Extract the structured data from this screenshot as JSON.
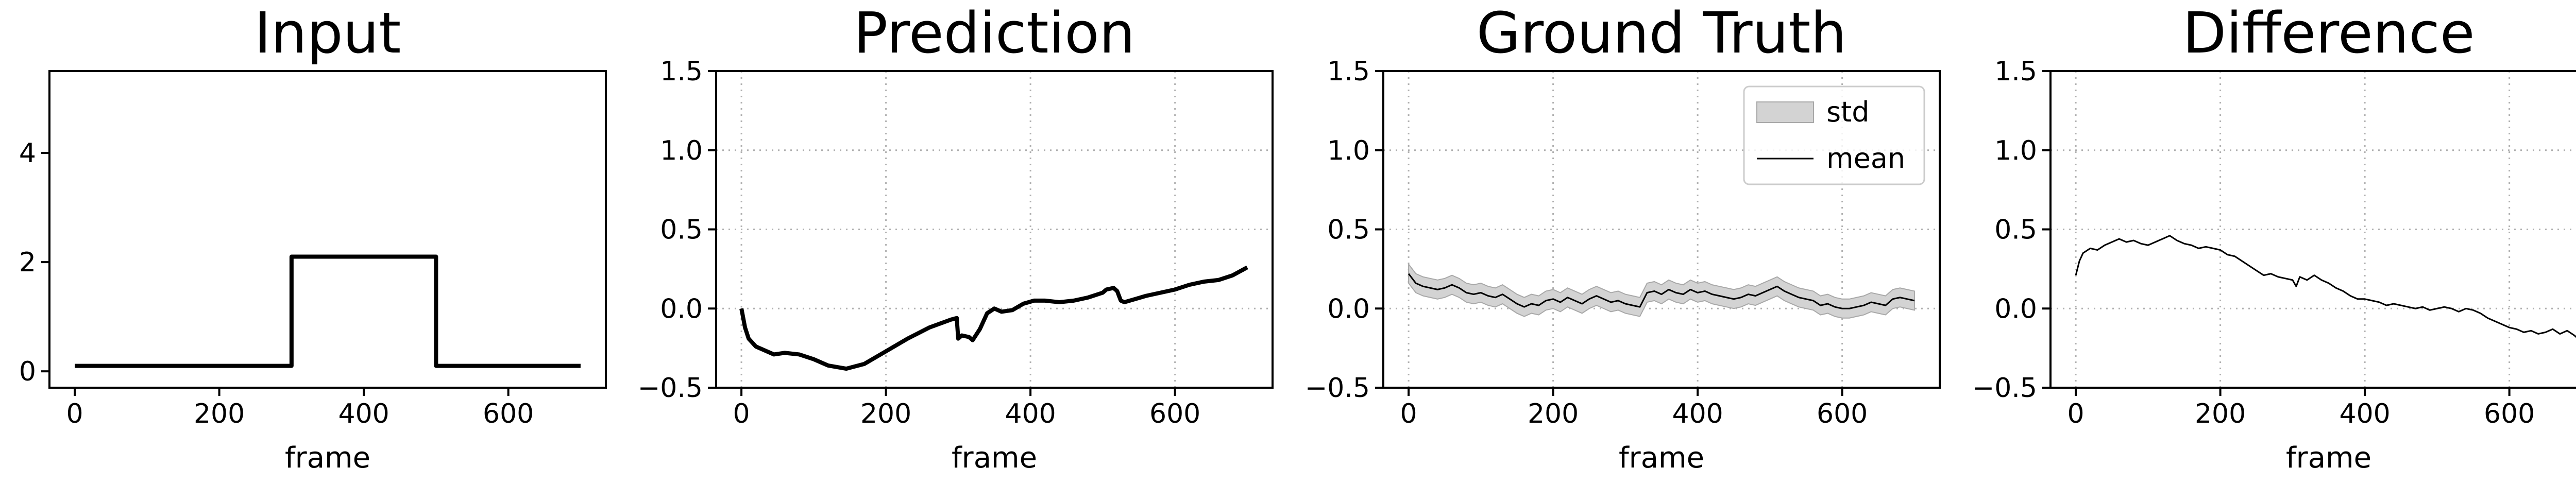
{
  "chart_data": [
    {
      "type": "line",
      "title": "Input",
      "xlabel": "frame",
      "ylabel": "",
      "xlim": [
        -35,
        735
      ],
      "ylim": [
        -0.3,
        5.5
      ],
      "xticks": [
        0,
        200,
        400,
        600
      ],
      "yticks": [
        0,
        2,
        4
      ],
      "xtick_labels": [
        "0",
        "200",
        "400",
        "600"
      ],
      "ytick_labels": [
        "0",
        "2",
        "4"
      ],
      "grid": false,
      "series": [
        {
          "color": "#000000",
          "x": [
            0,
            300,
            300,
            500,
            500,
            700
          ],
          "y": [
            0.1,
            0.1,
            2.1,
            2.1,
            0.1,
            0.1
          ]
        }
      ]
    },
    {
      "type": "line",
      "title": "Prediction",
      "xlabel": "frame",
      "ylabel": "",
      "xlim": [
        -35,
        735
      ],
      "ylim": [
        -0.5,
        1.5
      ],
      "xticks": [
        0,
        200,
        400,
        600
      ],
      "yticks": [
        -0.5,
        0.0,
        0.5,
        1.0,
        1.5
      ],
      "xtick_labels": [
        "0",
        "200",
        "400",
        "600"
      ],
      "ytick_labels": [
        "−0.5",
        "0.0",
        "0.5",
        "1.0",
        "1.5"
      ],
      "grid": true,
      "series": [
        {
          "color": "#000000",
          "x": [
            0,
            5,
            10,
            20,
            30,
            45,
            60,
            80,
            100,
            120,
            145,
            170,
            200,
            230,
            260,
            290,
            298,
            300,
            305,
            315,
            320,
            330,
            340,
            350,
            360,
            375,
            390,
            405,
            420,
            440,
            460,
            480,
            500,
            505,
            515,
            520,
            525,
            530,
            545,
            560,
            580,
            600,
            620,
            640,
            660,
            680,
            700
          ],
          "y": [
            0.0,
            -0.12,
            -0.19,
            -0.24,
            -0.26,
            -0.29,
            -0.28,
            -0.29,
            -0.32,
            -0.36,
            -0.38,
            -0.35,
            -0.27,
            -0.19,
            -0.12,
            -0.07,
            -0.06,
            -0.19,
            -0.17,
            -0.18,
            -0.2,
            -0.13,
            -0.03,
            0.0,
            -0.02,
            -0.01,
            0.03,
            0.05,
            0.05,
            0.04,
            0.05,
            0.07,
            0.1,
            0.12,
            0.13,
            0.11,
            0.05,
            0.04,
            0.06,
            0.08,
            0.1,
            0.12,
            0.15,
            0.17,
            0.18,
            0.21,
            0.26
          ]
        }
      ]
    },
    {
      "type": "area",
      "title": "Ground Truth",
      "xlabel": "frame",
      "ylabel": "",
      "xlim": [
        -35,
        735
      ],
      "ylim": [
        -0.5,
        1.5
      ],
      "xticks": [
        0,
        200,
        400,
        600
      ],
      "yticks": [
        -0.5,
        0.0,
        0.5,
        1.0,
        1.5
      ],
      "xtick_labels": [
        "0",
        "200",
        "400",
        "600"
      ],
      "ytick_labels": [
        "−0.5",
        "0.0",
        "0.5",
        "1.0",
        "1.5"
      ],
      "grid": true,
      "legend": {
        "position": "top-right",
        "entries": [
          {
            "label": "std",
            "kind": "patch",
            "color": "#d3d3d3"
          },
          {
            "label": "mean",
            "kind": "line",
            "color": "#000000"
          }
        ]
      },
      "series": [
        {
          "name": "mean",
          "color": "#000000",
          "std": 0.06,
          "x": [
            0,
            10,
            20,
            30,
            40,
            50,
            60,
            70,
            80,
            90,
            100,
            110,
            120,
            130,
            140,
            150,
            160,
            170,
            180,
            190,
            200,
            210,
            220,
            230,
            240,
            250,
            260,
            270,
            280,
            290,
            300,
            310,
            320,
            330,
            340,
            350,
            360,
            370,
            380,
            390,
            400,
            410,
            420,
            430,
            440,
            450,
            460,
            470,
            480,
            490,
            500,
            510,
            520,
            530,
            540,
            550,
            560,
            570,
            580,
            590,
            600,
            610,
            620,
            630,
            640,
            650,
            660,
            670,
            680,
            690,
            700
          ],
          "y": [
            0.22,
            0.16,
            0.14,
            0.13,
            0.12,
            0.13,
            0.15,
            0.13,
            0.1,
            0.09,
            0.1,
            0.08,
            0.07,
            0.09,
            0.06,
            0.03,
            0.01,
            0.03,
            0.02,
            0.05,
            0.06,
            0.04,
            0.07,
            0.05,
            0.03,
            0.06,
            0.08,
            0.06,
            0.04,
            0.05,
            0.03,
            0.02,
            0.01,
            0.1,
            0.11,
            0.09,
            0.12,
            0.1,
            0.09,
            0.12,
            0.1,
            0.11,
            0.09,
            0.08,
            0.07,
            0.06,
            0.07,
            0.09,
            0.08,
            0.1,
            0.12,
            0.14,
            0.11,
            0.09,
            0.07,
            0.06,
            0.05,
            0.02,
            0.03,
            0.01,
            0.0,
            0.0,
            0.01,
            0.02,
            0.04,
            0.03,
            0.02,
            0.06,
            0.07,
            0.06,
            0.05
          ]
        }
      ]
    },
    {
      "type": "line",
      "title": "Difference",
      "xlabel": "frame",
      "ylabel": "",
      "xlim": [
        -35,
        735
      ],
      "ylim": [
        -0.5,
        1.5
      ],
      "xticks": [
        0,
        200,
        400,
        600
      ],
      "yticks": [
        -0.5,
        0.0,
        0.5,
        1.0,
        1.5
      ],
      "xtick_labels": [
        "0",
        "200",
        "400",
        "600"
      ],
      "ytick_labels": [
        "−0.5",
        "0.0",
        "0.5",
        "1.0",
        "1.5"
      ],
      "grid": true,
      "series": [
        {
          "color": "#000000",
          "x": [
            0,
            5,
            10,
            20,
            30,
            40,
            50,
            60,
            70,
            80,
            90,
            100,
            110,
            120,
            130,
            140,
            150,
            160,
            170,
            180,
            190,
            200,
            210,
            220,
            230,
            240,
            250,
            260,
            270,
            280,
            290,
            300,
            305,
            310,
            320,
            330,
            340,
            350,
            360,
            370,
            380,
            390,
            400,
            410,
            420,
            430,
            440,
            450,
            460,
            470,
            480,
            490,
            500,
            510,
            520,
            530,
            540,
            550,
            560,
            570,
            580,
            590,
            600,
            610,
            620,
            630,
            640,
            650,
            660,
            670,
            680,
            690,
            700
          ],
          "y": [
            0.21,
            0.3,
            0.35,
            0.38,
            0.37,
            0.4,
            0.42,
            0.44,
            0.42,
            0.43,
            0.41,
            0.4,
            0.42,
            0.44,
            0.46,
            0.43,
            0.41,
            0.4,
            0.38,
            0.39,
            0.38,
            0.37,
            0.34,
            0.33,
            0.3,
            0.27,
            0.24,
            0.21,
            0.22,
            0.2,
            0.19,
            0.18,
            0.14,
            0.2,
            0.18,
            0.21,
            0.18,
            0.16,
            0.13,
            0.11,
            0.08,
            0.06,
            0.06,
            0.05,
            0.04,
            0.02,
            0.03,
            0.02,
            0.01,
            0.0,
            0.01,
            -0.01,
            0.0,
            0.01,
            0.0,
            -0.02,
            0.0,
            -0.01,
            -0.03,
            -0.06,
            -0.08,
            -0.1,
            -0.12,
            -0.13,
            -0.15,
            -0.14,
            -0.16,
            -0.15,
            -0.13,
            -0.16,
            -0.14,
            -0.17,
            -0.21
          ]
        }
      ]
    }
  ]
}
